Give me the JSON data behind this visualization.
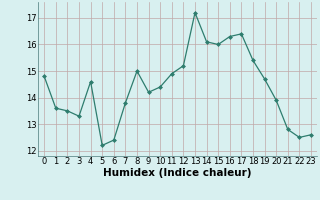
{
  "x": [
    0,
    1,
    2,
    3,
    4,
    5,
    6,
    7,
    8,
    9,
    10,
    11,
    12,
    13,
    14,
    15,
    16,
    17,
    18,
    19,
    20,
    21,
    22,
    23
  ],
  "y": [
    14.8,
    13.6,
    13.5,
    13.3,
    14.6,
    12.2,
    12.4,
    13.8,
    15.0,
    14.2,
    14.4,
    14.9,
    15.2,
    17.2,
    16.1,
    16.0,
    16.3,
    16.4,
    15.4,
    14.7,
    13.9,
    12.8,
    12.5,
    12.6
  ],
  "line_color": "#2e7d6e",
  "marker": "D",
  "marker_size": 2.0,
  "bg_color": "#d8f0f0",
  "grid_color": "#c0a8a8",
  "xlabel": "Humidex (Indice chaleur)",
  "xlabel_fontsize": 7.5,
  "ylim": [
    11.8,
    17.6
  ],
  "xlim": [
    -0.5,
    23.5
  ],
  "yticks": [
    12,
    13,
    14,
    15,
    16,
    17
  ],
  "xticks": [
    0,
    1,
    2,
    3,
    4,
    5,
    6,
    7,
    8,
    9,
    10,
    11,
    12,
    13,
    14,
    15,
    16,
    17,
    18,
    19,
    20,
    21,
    22,
    23
  ],
  "tick_fontsize": 6.0,
  "linewidth": 0.9
}
